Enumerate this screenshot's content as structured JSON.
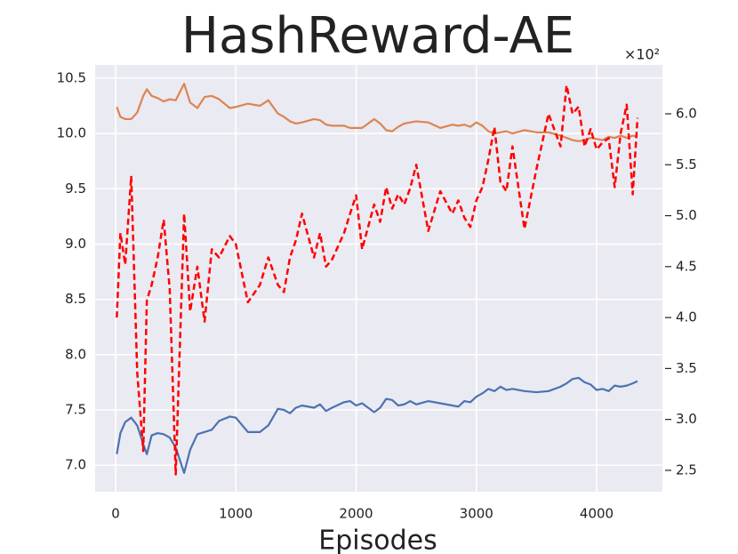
{
  "chart_data": {
    "type": "line",
    "title": "HashReward-AE",
    "x_label": "Episodes",
    "y2_multiplier": "×10²",
    "x": [
      10,
      40,
      80,
      130,
      180,
      230,
      260,
      300,
      350,
      400,
      450,
      500,
      570,
      620,
      680,
      740,
      800,
      860,
      950,
      1000,
      1100,
      1200,
      1270,
      1350,
      1400,
      1450,
      1500,
      1550,
      1650,
      1700,
      1750,
      1800,
      1900,
      1950,
      2000,
      2050,
      2150,
      2200,
      2250,
      2300,
      2350,
      2400,
      2450,
      2500,
      2600,
      2700,
      2800,
      2850,
      2900,
      2950,
      3000,
      3050,
      3100,
      3150,
      3200,
      3250,
      3300,
      3400,
      3500,
      3600,
      3700,
      3750,
      3800,
      3850,
      3900,
      3950,
      4000,
      4050,
      4100,
      4150,
      4200,
      4250,
      4300,
      4340
    ],
    "series": [
      {
        "color": "#4c72b0",
        "dashed": false,
        "axis": "y",
        "values": [
          7.1,
          7.29,
          7.39,
          7.43,
          7.36,
          7.19,
          7.1,
          7.27,
          7.29,
          7.28,
          7.25,
          7.16,
          6.93,
          7.14,
          7.28,
          7.3,
          7.32,
          7.4,
          7.44,
          7.43,
          7.3,
          7.3,
          7.36,
          7.51,
          7.5,
          7.47,
          7.52,
          7.54,
          7.52,
          7.55,
          7.49,
          7.52,
          7.57,
          7.58,
          7.54,
          7.56,
          7.48,
          7.52,
          7.6,
          7.59,
          7.54,
          7.55,
          7.58,
          7.55,
          7.58,
          7.56,
          7.54,
          7.53,
          7.58,
          7.57,
          7.62,
          7.65,
          7.69,
          7.67,
          7.71,
          7.68,
          7.69,
          7.67,
          7.66,
          7.67,
          7.71,
          7.74,
          7.78,
          7.79,
          7.75,
          7.73,
          7.68,
          7.69,
          7.67,
          7.72,
          7.71,
          7.72,
          7.74,
          7.76
        ]
      },
      {
        "color": "#dd8452",
        "dashed": false,
        "axis": "y",
        "values": [
          10.24,
          10.15,
          10.13,
          10.13,
          10.19,
          10.34,
          10.4,
          10.34,
          10.32,
          10.29,
          10.31,
          10.3,
          10.45,
          10.28,
          10.23,
          10.33,
          10.34,
          10.31,
          10.23,
          10.24,
          10.27,
          10.25,
          10.3,
          10.18,
          10.15,
          10.11,
          10.09,
          10.1,
          10.13,
          10.12,
          10.08,
          10.07,
          10.07,
          10.05,
          10.05,
          10.05,
          10.13,
          10.09,
          10.03,
          10.02,
          10.06,
          10.09,
          10.1,
          10.11,
          10.1,
          10.05,
          10.08,
          10.07,
          10.08,
          10.06,
          10.1,
          10.07,
          10.02,
          10.0,
          10.01,
          10.02,
          10.0,
          10.03,
          10.01,
          10.01,
          9.98,
          9.96,
          9.94,
          9.93,
          9.94,
          9.96,
          9.95,
          9.94,
          9.97,
          9.96,
          9.98,
          9.96,
          9.98,
          9.97
        ]
      },
      {
        "color": "#ff0000",
        "dashed": true,
        "axis": "y2",
        "values": [
          4.0,
          4.83,
          4.52,
          5.39,
          3.46,
          2.69,
          4.17,
          4.32,
          4.59,
          4.96,
          4.28,
          2.46,
          5.02,
          4.06,
          4.5,
          3.96,
          4.67,
          4.59,
          4.8,
          4.72,
          4.15,
          4.32,
          4.59,
          4.32,
          4.25,
          4.59,
          4.76,
          5.02,
          4.59,
          4.83,
          4.5,
          4.57,
          4.83,
          5.02,
          5.2,
          4.67,
          5.11,
          4.94,
          5.28,
          5.07,
          5.21,
          5.11,
          5.27,
          5.5,
          4.85,
          5.24,
          5.02,
          5.15,
          4.98,
          4.89,
          5.15,
          5.28,
          5.55,
          5.87,
          5.33,
          5.24,
          5.68,
          4.87,
          5.46,
          6.0,
          5.68,
          6.28,
          6.0,
          6.07,
          5.68,
          5.85,
          5.65,
          5.72,
          5.76,
          5.28,
          5.81,
          6.09,
          5.21,
          5.96
        ]
      }
    ],
    "xlim": [
      -170,
      4547
    ],
    "xticks": [
      0,
      1000,
      2000,
      3000,
      4000
    ],
    "ylim": [
      6.76,
      10.62
    ],
    "yticks": [
      {
        "value": 7,
        "label": "7.0"
      },
      7.5,
      {
        "value": 8,
        "label": "8.0"
      },
      8.5,
      {
        "value": 9,
        "label": "9.0"
      },
      9.5,
      {
        "value": 10,
        "label": "10.0"
      },
      10.5
    ],
    "y2lim": [
      2.29,
      6.48
    ],
    "y2ticks": [
      2.5,
      {
        "value": 3,
        "label": "3.0"
      },
      3.5,
      {
        "value": 4,
        "label": "4.0"
      },
      4.5,
      {
        "value": 5,
        "label": "5.0"
      },
      5.5,
      {
        "value": 6,
        "label": "6.0"
      }
    ],
    "grid": true
  }
}
